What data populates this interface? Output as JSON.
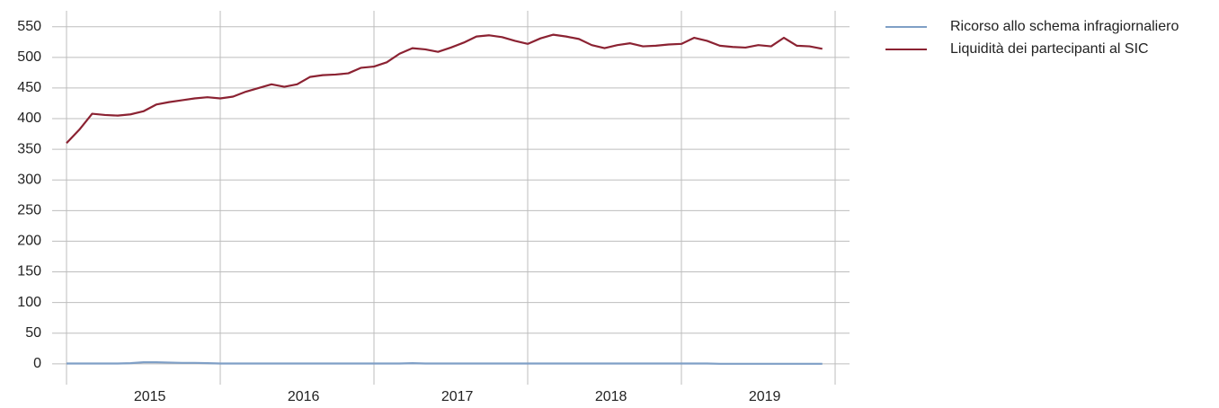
{
  "chart_data": {
    "type": "line",
    "categories": [
      null,
      null,
      null,
      null,
      null,
      null,
      "2015",
      null,
      null,
      null,
      null,
      null,
      null,
      null,
      null,
      null,
      null,
      null,
      "2016",
      null,
      null,
      null,
      null,
      null,
      null,
      null,
      null,
      null,
      null,
      null,
      "2017",
      null,
      null,
      null,
      null,
      null,
      null,
      null,
      null,
      null,
      null,
      null,
      "2018",
      null,
      null,
      null,
      null,
      null,
      null,
      null,
      null,
      null,
      null,
      null,
      "2019",
      null,
      null,
      null,
      null,
      null
    ],
    "series": [
      {
        "name": "Ricorso allo schema infragiornaliero",
        "color": "#7f9fc6",
        "values": [
          0.5,
          0.5,
          0.5,
          0.5,
          0.5,
          1,
          2.5,
          2.5,
          2,
          1.5,
          1.5,
          1,
          0.5,
          0.5,
          0.5,
          0.5,
          0.5,
          0.5,
          0.5,
          0.5,
          0.5,
          0.5,
          0.5,
          0.5,
          0.5,
          0.5,
          0.5,
          1,
          0.5,
          0.5,
          0.5,
          0.5,
          0.5,
          0.5,
          0.5,
          0.5,
          0.5,
          0.5,
          0.5,
          0.5,
          0.5,
          0.5,
          0.5,
          0.5,
          0.5,
          0.5,
          0.5,
          0.5,
          0.5,
          0.5,
          0.5,
          0,
          0,
          0,
          0,
          0,
          0,
          0,
          0,
          0
        ]
      },
      {
        "name": "Liquidità dei partecipanti al SIC",
        "color": "#8b2232",
        "values": [
          360,
          382,
          408,
          406,
          405,
          407,
          412,
          423,
          427,
          430,
          433,
          435,
          433,
          436,
          444,
          450,
          456,
          452,
          456,
          468,
          471,
          472,
          474,
          483,
          485,
          492,
          506,
          515,
          513,
          509,
          516,
          524,
          534,
          536,
          533,
          527,
          522,
          531,
          537,
          534,
          530,
          520,
          515,
          520,
          523,
          518,
          519,
          521,
          522,
          532,
          527,
          519,
          517,
          516,
          520,
          518,
          532,
          519,
          518,
          514
        ]
      }
    ],
    "ylim": [
      -34,
      576
    ],
    "yticks": [
      0,
      50,
      100,
      150,
      200,
      250,
      300,
      350,
      400,
      450,
      500,
      550
    ],
    "grid": true
  }
}
